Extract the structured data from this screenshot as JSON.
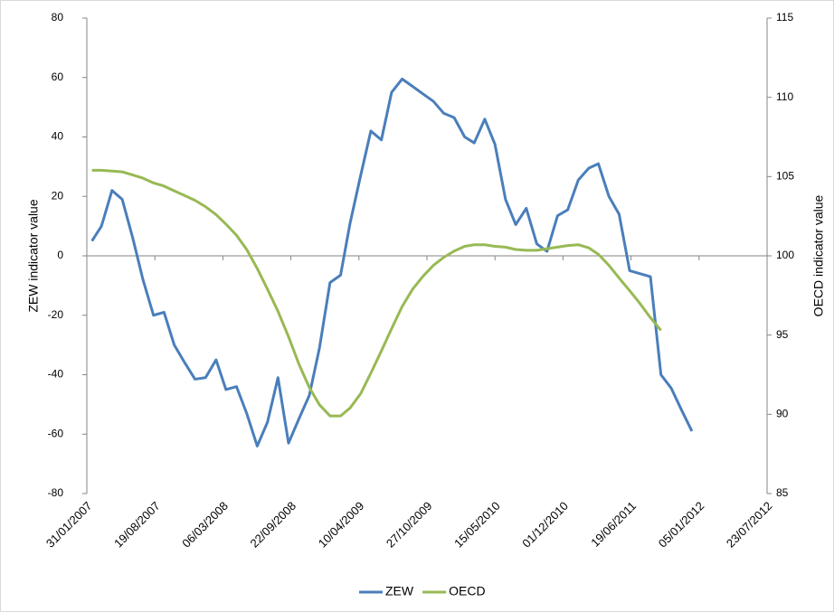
{
  "chart_data": {
    "type": "line",
    "ylabel": "ZEW indicator value",
    "y2label": "OECD indicator value",
    "xlim": [
      "2007-01-31",
      "2012-07-23"
    ],
    "xticks": [
      {
        "value": "2007-01-31",
        "label": "31/01/2007"
      },
      {
        "value": "2007-08-19",
        "label": "19/08/2007"
      },
      {
        "value": "2008-03-06",
        "label": "06/03/2008"
      },
      {
        "value": "2008-09-22",
        "label": "22/09/2008"
      },
      {
        "value": "2009-04-10",
        "label": "10/04/2009"
      },
      {
        "value": "2009-10-27",
        "label": "27/10/2009"
      },
      {
        "value": "2010-05-15",
        "label": "15/05/2010"
      },
      {
        "value": "2010-12-01",
        "label": "01/12/2010"
      },
      {
        "value": "2011-06-19",
        "label": "19/06/2011"
      },
      {
        "value": "2012-01-05",
        "label": "05/01/2012"
      },
      {
        "value": "2012-07-23",
        "label": "23/07/2012"
      }
    ],
    "ylim": [
      -80,
      80
    ],
    "yticks": [
      -80,
      -60,
      -40,
      -20,
      0,
      20,
      40,
      60,
      80
    ],
    "y2lim": [
      85,
      115
    ],
    "y2ticks": [
      85,
      90,
      95,
      100,
      105,
      110,
      115
    ],
    "legend": "bottom",
    "series": [
      {
        "name": "ZEW",
        "color": "#4a7ebb",
        "x": [
          "2007-02-15",
          "2007-03-15",
          "2007-04-15",
          "2007-05-15",
          "2007-06-15",
          "2007-07-15",
          "2007-08-15",
          "2007-09-15",
          "2007-10-15",
          "2007-11-15",
          "2007-12-15",
          "2008-01-15",
          "2008-02-15",
          "2008-03-15",
          "2008-04-15",
          "2008-05-15",
          "2008-06-15",
          "2008-07-15",
          "2008-08-15",
          "2008-09-15",
          "2008-10-15",
          "2008-11-15",
          "2008-12-15",
          "2009-01-15",
          "2009-02-15",
          "2009-03-15",
          "2009-04-15",
          "2009-05-15",
          "2009-06-15",
          "2009-07-15",
          "2009-08-15",
          "2009-09-15",
          "2009-10-15",
          "2009-11-15",
          "2009-12-15",
          "2010-01-15",
          "2010-02-15",
          "2010-03-15",
          "2010-04-15",
          "2010-05-15",
          "2010-06-15",
          "2010-07-15",
          "2010-08-15",
          "2010-09-15",
          "2010-10-15",
          "2010-11-15",
          "2010-12-15",
          "2011-01-15",
          "2011-02-15",
          "2011-03-15",
          "2011-04-15",
          "2011-05-15",
          "2011-06-15",
          "2011-07-15",
          "2011-08-15",
          "2011-09-15",
          "2011-10-15",
          "2011-11-15",
          "2011-12-15"
        ],
        "values": [
          5,
          10,
          22,
          19,
          6,
          -8,
          -20,
          -19,
          -30,
          -36,
          -41.5,
          -41,
          -35,
          -45,
          -44,
          -53,
          -64,
          -56,
          -41,
          -63,
          -55,
          -47,
          -31,
          -9,
          -6.5,
          11,
          27,
          42,
          39,
          55,
          59.5,
          57,
          54.5,
          52,
          48,
          46.5,
          40,
          38,
          46,
          37.5,
          19,
          10.5,
          16,
          4,
          1.5,
          13.5,
          15.5,
          25.5,
          29.5,
          31,
          20,
          14,
          -5,
          -6,
          -7,
          -40,
          -44.5,
          -52,
          -59
        ]
      },
      {
        "name": "OECD",
        "color": "#98b954",
        "axis": "y2",
        "x": [
          "2007-02-15",
          "2007-03-15",
          "2007-04-15",
          "2007-05-15",
          "2007-06-15",
          "2007-07-15",
          "2007-08-15",
          "2007-09-15",
          "2007-10-15",
          "2007-11-15",
          "2007-12-15",
          "2008-01-15",
          "2008-02-15",
          "2008-03-15",
          "2008-04-15",
          "2008-05-15",
          "2008-06-15",
          "2008-07-15",
          "2008-08-15",
          "2008-09-15",
          "2008-10-15",
          "2008-11-15",
          "2008-12-15",
          "2009-01-15",
          "2009-02-15",
          "2009-03-15",
          "2009-04-15",
          "2009-05-15",
          "2009-06-15",
          "2009-07-15",
          "2009-08-15",
          "2009-09-15",
          "2009-10-15",
          "2009-11-15",
          "2009-12-15",
          "2010-01-15",
          "2010-02-15",
          "2010-03-15",
          "2010-04-15",
          "2010-05-15",
          "2010-06-15",
          "2010-07-15",
          "2010-08-15",
          "2010-09-15",
          "2010-10-15",
          "2010-11-15",
          "2010-12-15",
          "2011-01-15",
          "2011-02-15",
          "2011-03-15",
          "2011-04-15",
          "2011-05-15",
          "2011-06-15",
          "2011-07-15",
          "2011-08-15",
          "2011-09-15"
        ],
        "values": [
          105.4,
          105.4,
          105.35,
          105.3,
          105.1,
          104.9,
          104.6,
          104.4,
          104.1,
          103.8,
          103.5,
          103.1,
          102.6,
          102.0,
          101.3,
          100.4,
          99.2,
          97.9,
          96.5,
          94.9,
          93.2,
          91.7,
          90.6,
          89.9,
          89.9,
          90.4,
          91.3,
          92.6,
          94.0,
          95.4,
          96.8,
          97.9,
          98.7,
          99.4,
          99.9,
          100.3,
          100.6,
          100.7,
          100.7,
          100.6,
          100.55,
          100.4,
          100.35,
          100.35,
          100.45,
          100.55,
          100.65,
          100.7,
          100.5,
          100.1,
          99.4,
          98.6,
          97.8,
          97.0,
          96.1,
          95.3
        ]
      }
    ]
  }
}
